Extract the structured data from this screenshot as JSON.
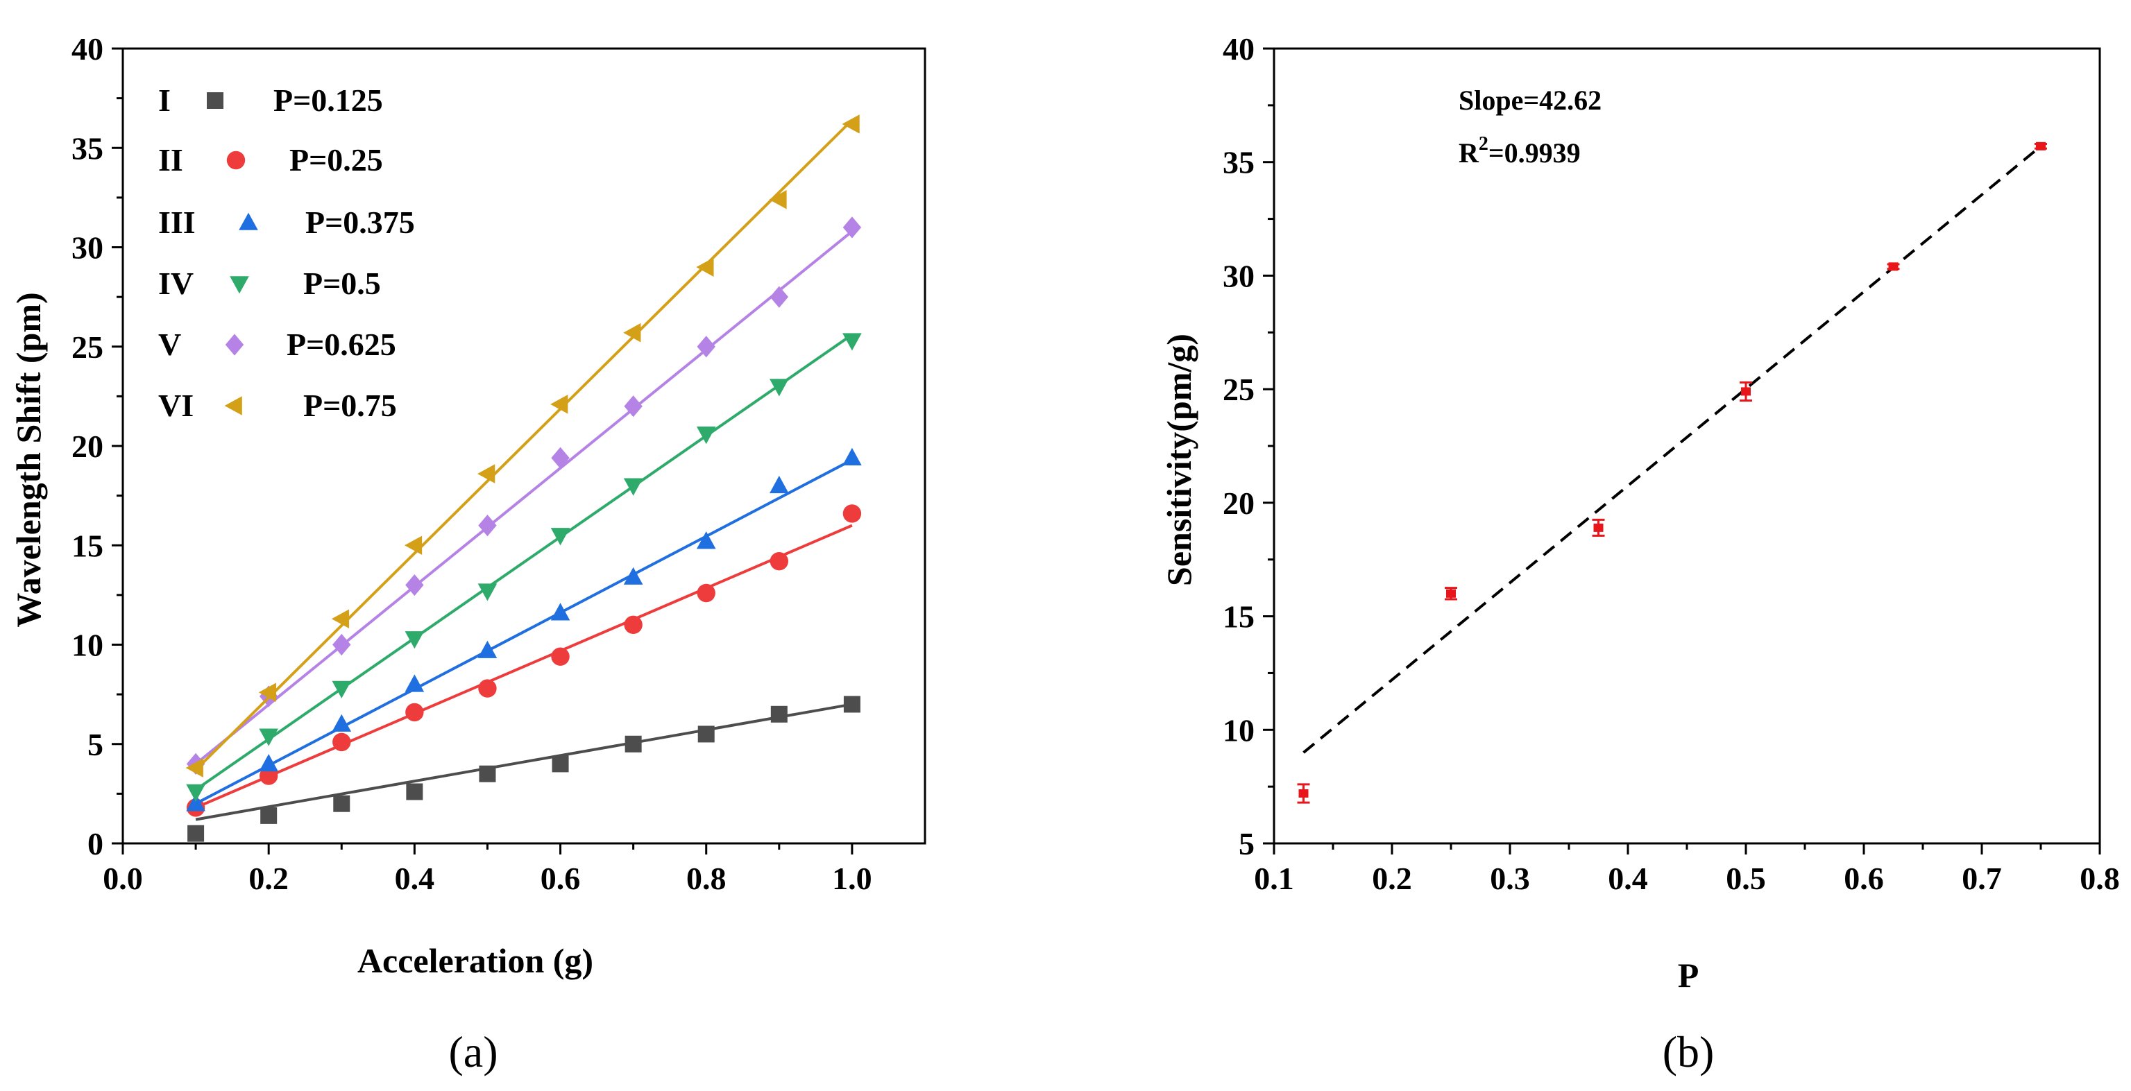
{
  "chart_data": [
    {
      "type": "scatter",
      "panel_label": "(a)",
      "xlabel": "Acceleration (g)",
      "ylabel": "Wavelength Shift (pm)",
      "xlim": [
        0.0,
        1.1
      ],
      "ylim": [
        0,
        40
      ],
      "xticks": [
        0.0,
        0.2,
        0.4,
        0.6,
        0.8,
        1.0
      ],
      "xtick_labels": [
        "0.0",
        "0.2",
        "0.4",
        "0.6",
        "0.8",
        "1.0"
      ],
      "yticks": [
        0,
        5,
        10,
        15,
        20,
        25,
        30,
        35,
        40
      ],
      "ytick_labels": [
        "0",
        "5",
        "10",
        "15",
        "20",
        "25",
        "30",
        "35",
        "40"
      ],
      "legend_position": "top-left",
      "x": [
        0.1,
        0.2,
        0.3,
        0.4,
        0.5,
        0.6,
        0.7,
        0.8,
        0.9,
        1.0
      ],
      "series": [
        {
          "roman": "I",
          "name": "P=0.125",
          "marker": "square",
          "color": "#4d4d4d",
          "values": [
            0.5,
            1.4,
            2.0,
            2.6,
            3.5,
            4.0,
            5.0,
            5.5,
            6.5,
            7.0
          ],
          "fit": [
            [
              0.1,
              1.2
            ],
            [
              1.0,
              7.0
            ]
          ]
        },
        {
          "roman": "II",
          "name": "P=0.25",
          "marker": "circle",
          "color": "#ee3b3b",
          "values": [
            1.8,
            3.4,
            5.1,
            6.6,
            7.8,
            9.4,
            11.0,
            12.6,
            14.2,
            16.6
          ],
          "fit": [
            [
              0.1,
              1.8
            ],
            [
              1.0,
              16.0
            ]
          ]
        },
        {
          "roman": "III",
          "name": "P=0.375",
          "marker": "triangle-up",
          "color": "#1f6fe0",
          "values": [
            2.0,
            4.0,
            6.0,
            8.0,
            9.7,
            11.6,
            13.4,
            15.2,
            18.0,
            19.4
          ],
          "fit": [
            [
              0.1,
              2.0
            ],
            [
              1.0,
              19.3
            ]
          ]
        },
        {
          "roman": "IV",
          "name": "P=0.5",
          "marker": "triangle-down",
          "color": "#2eaa6b",
          "values": [
            2.6,
            5.4,
            7.8,
            10.3,
            12.7,
            15.5,
            18.0,
            20.6,
            23.0,
            25.3
          ],
          "fit": [
            [
              0.1,
              2.7
            ],
            [
              1.0,
              25.6
            ]
          ]
        },
        {
          "roman": "V",
          "name": "P=0.625",
          "marker": "diamond",
          "color": "#b582e6",
          "values": [
            4.0,
            7.4,
            10.0,
            13.0,
            16.0,
            19.4,
            22.0,
            25.0,
            27.5,
            31.0
          ],
          "fit": [
            [
              0.1,
              4.0
            ],
            [
              1.0,
              30.8
            ]
          ]
        },
        {
          "roman": "VI",
          "name": "P=0.75",
          "marker": "triangle-left",
          "color": "#d4a017",
          "values": [
            3.8,
            7.6,
            11.3,
            15.0,
            18.6,
            22.1,
            25.7,
            29.0,
            32.4,
            36.2
          ],
          "fit": [
            [
              0.1,
              3.7
            ],
            [
              1.0,
              36.4
            ]
          ]
        }
      ]
    },
    {
      "type": "scatter",
      "panel_label": "(b)",
      "xlabel": "P",
      "ylabel": "Sensitivity(pm/g)",
      "xlim": [
        0.1,
        0.8
      ],
      "ylim": [
        5,
        40
      ],
      "xticks": [
        0.1,
        0.2,
        0.3,
        0.4,
        0.5,
        0.6,
        0.7,
        0.8
      ],
      "xtick_labels": [
        "0.1",
        "0.2",
        "0.3",
        "0.4",
        "0.5",
        "0.6",
        "0.7",
        "0.8"
      ],
      "yticks": [
        5,
        10,
        15,
        20,
        25,
        30,
        35,
        40
      ],
      "ytick_labels": [
        "5",
        "10",
        "15",
        "20",
        "25",
        "30",
        "35",
        "40"
      ],
      "annotation_slope": "Slope=42.62",
      "annotation_r2_prefix": "R",
      "annotation_r2_sup": "2",
      "annotation_r2_value": "=0.9939",
      "color": "#e8161b",
      "x": [
        0.125,
        0.25,
        0.375,
        0.5,
        0.625,
        0.75
      ],
      "values": [
        7.2,
        16.0,
        18.9,
        24.9,
        30.4,
        35.7
      ],
      "errors": [
        0.4,
        0.25,
        0.35,
        0.4,
        0.1,
        0.1
      ],
      "fit": [
        [
          0.125,
          9.0
        ],
        [
          0.75,
          35.7
        ]
      ]
    }
  ]
}
